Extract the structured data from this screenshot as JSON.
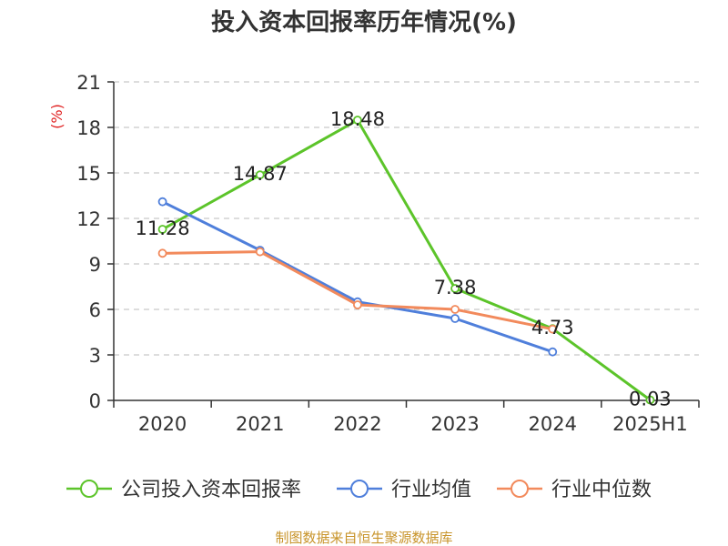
{
  "chart_data": {
    "type": "line",
    "title": "投入资本回报率历年情况(%)",
    "unit_label": "(%)",
    "categories": [
      "2020",
      "2021",
      "2022",
      "2023",
      "2024",
      "2025H1"
    ],
    "ylim": [
      0,
      21
    ],
    "yticks": [
      "0",
      "3",
      "6",
      "9",
      "12",
      "15",
      "18",
      "21"
    ],
    "grid": true,
    "legend_position": "bottom",
    "series": [
      {
        "name": "公司投入资本回报率",
        "color": "#5cc42a",
        "values": [
          11.28,
          14.87,
          18.48,
          7.38,
          4.73,
          0.03
        ],
        "labels": [
          "11.28",
          "14.87",
          "18.48",
          "7.38",
          "4.73",
          "0.03"
        ]
      },
      {
        "name": "行业均值",
        "color": "#4f7fdb",
        "values": [
          13.1,
          9.9,
          6.5,
          5.4,
          3.2,
          null
        ]
      },
      {
        "name": "行业中位数",
        "color": "#f28a5c",
        "values": [
          9.7,
          9.8,
          6.3,
          6.0,
          4.7,
          null
        ]
      }
    ],
    "source": "制图数据来自恒生聚源数据库"
  }
}
